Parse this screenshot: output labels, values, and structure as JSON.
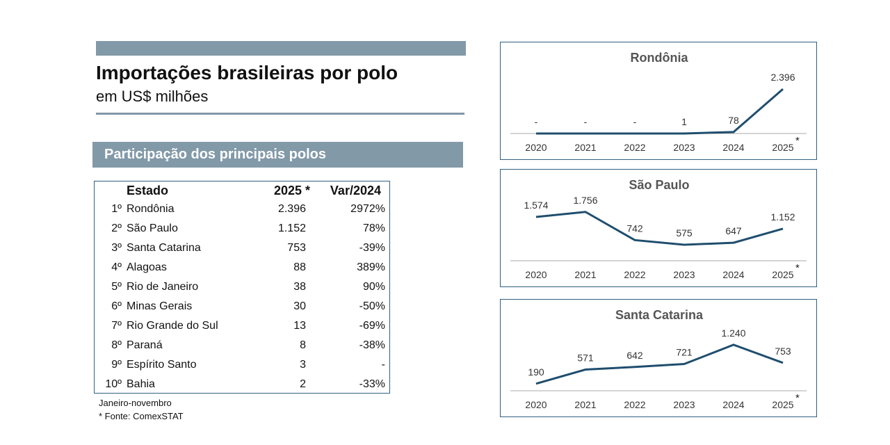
{
  "header": {
    "title": "Importações brasileiras por polo",
    "subtitle": "em US$ milhões",
    "section": "Participação dos principais polos"
  },
  "table": {
    "columns": [
      "Estado",
      "2025 *",
      "Var/2024"
    ],
    "rows": [
      {
        "rank": "1º",
        "estado": "Rondônia",
        "v2025": "2.396",
        "var": "2972%"
      },
      {
        "rank": "2º",
        "estado": "São Paulo",
        "v2025": "1.152",
        "var": "78%"
      },
      {
        "rank": "3º",
        "estado": "Santa Catarina",
        "v2025": "753",
        "var": "-39%"
      },
      {
        "rank": "4º",
        "estado": "Alagoas",
        "v2025": "88",
        "var": "389%"
      },
      {
        "rank": "5º",
        "estado": "Rio de Janeiro",
        "v2025": "38",
        "var": "90%"
      },
      {
        "rank": "6º",
        "estado": "Minas Gerais",
        "v2025": "30",
        "var": "-50%"
      },
      {
        "rank": "7º",
        "estado": "Rio Grande do Sul",
        "v2025": "13",
        "var": "-69%"
      },
      {
        "rank": "8º",
        "estado": "Paraná",
        "v2025": "8",
        "var": "-38%"
      },
      {
        "rank": "9º",
        "estado": "Espírito Santo",
        "v2025": "3",
        "var": "-"
      },
      {
        "rank": "10º",
        "estado": "Bahia",
        "v2025": "2",
        "var": "-33%"
      }
    ]
  },
  "notes": {
    "period": "Janeiro-novembro",
    "source": "* Fonte: ComexSTAT"
  },
  "colors": {
    "line": "#1f4e6e",
    "accent": "#8299a8",
    "border": "#2f5f7f"
  },
  "chart_data": [
    {
      "type": "line",
      "title": "Rondônia",
      "categories": [
        "2020",
        "2021",
        "2022",
        "2023",
        "2024",
        "2025"
      ],
      "values": [
        0,
        0,
        0,
        1,
        78,
        2396
      ],
      "labels": [
        "-",
        "-",
        "-",
        "1",
        "78",
        "2.396"
      ],
      "ylim": [
        0,
        3000
      ],
      "last_mark": "*"
    },
    {
      "type": "line",
      "title": "São Paulo",
      "categories": [
        "2020",
        "2021",
        "2022",
        "2023",
        "2024",
        "2025"
      ],
      "values": [
        1574,
        1756,
        742,
        575,
        647,
        1152
      ],
      "labels": [
        "1.574",
        "1.756",
        "742",
        "575",
        "647",
        "1.152"
      ],
      "ylim": [
        0,
        2000
      ],
      "last_mark": "*"
    },
    {
      "type": "line",
      "title": "Santa Catarina",
      "categories": [
        "2020",
        "2021",
        "2022",
        "2023",
        "2024",
        "2025"
      ],
      "values": [
        190,
        571,
        642,
        721,
        1240,
        753
      ],
      "labels": [
        "190",
        "571",
        "642",
        "721",
        "1.240",
        "753"
      ],
      "ylim": [
        0,
        1500
      ],
      "last_mark": "*"
    }
  ]
}
